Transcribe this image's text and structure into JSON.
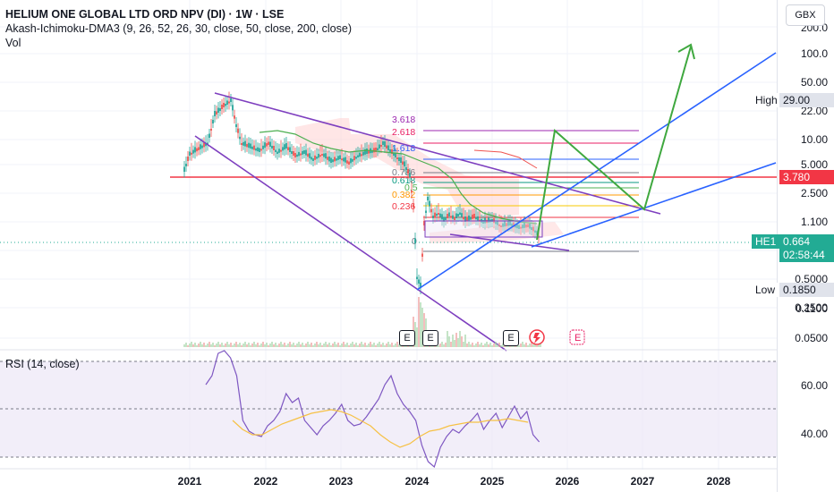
{
  "header": {
    "title": "HELIUM ONE GLOBAL LTD ORD NPV (DI) · 1W · LSE",
    "indicator": "Akash-Ichimoku-DMA3 (9, 26, 52, 26, 30, close, 50, close, 200, close)",
    "volume": "Vol"
  },
  "price_axis": {
    "currency": "GBX",
    "ticks": [
      "200.0",
      "100.0",
      "50.00",
      "22.00",
      "10.00",
      "5.000",
      "2.500",
      "1.100",
      "0.5000",
      "0.2500",
      "0.1100",
      "0.0500"
    ]
  },
  "rsi": {
    "label": "RSI (14, close)",
    "ticks": [
      "60.00",
      "40.00"
    ]
  },
  "x_axis": {
    "years": [
      "2021",
      "2022",
      "2023",
      "2024",
      "2025",
      "2026",
      "2027",
      "2028"
    ]
  },
  "tags": {
    "high_label": "High",
    "high_value": "29.00",
    "level_value": "3.780",
    "symbol": "HE1",
    "last_price": "0.664",
    "countdown": "02:58:44",
    "low_label": "Low",
    "low_value": "0.1850"
  },
  "fib_labels": [
    "3.618",
    "2.618",
    "1.618",
    "0.786",
    "0.618",
    "0.5",
    "0.382",
    "0.236",
    "0"
  ],
  "event_badges": [
    "E",
    "E",
    "E"
  ],
  "colors": {
    "candle_up": "#26a69a",
    "candle_down": "#ef5350",
    "trendline": "#7e3fbf",
    "channel": "#2962ff",
    "arrow": "#3fa83f",
    "red_line": "#f23645",
    "rsi_line": "#7e57c2",
    "rsi_ma": "#f6c145",
    "rsi_band": "#ede7f6",
    "last_price": "#22ab94"
  }
}
